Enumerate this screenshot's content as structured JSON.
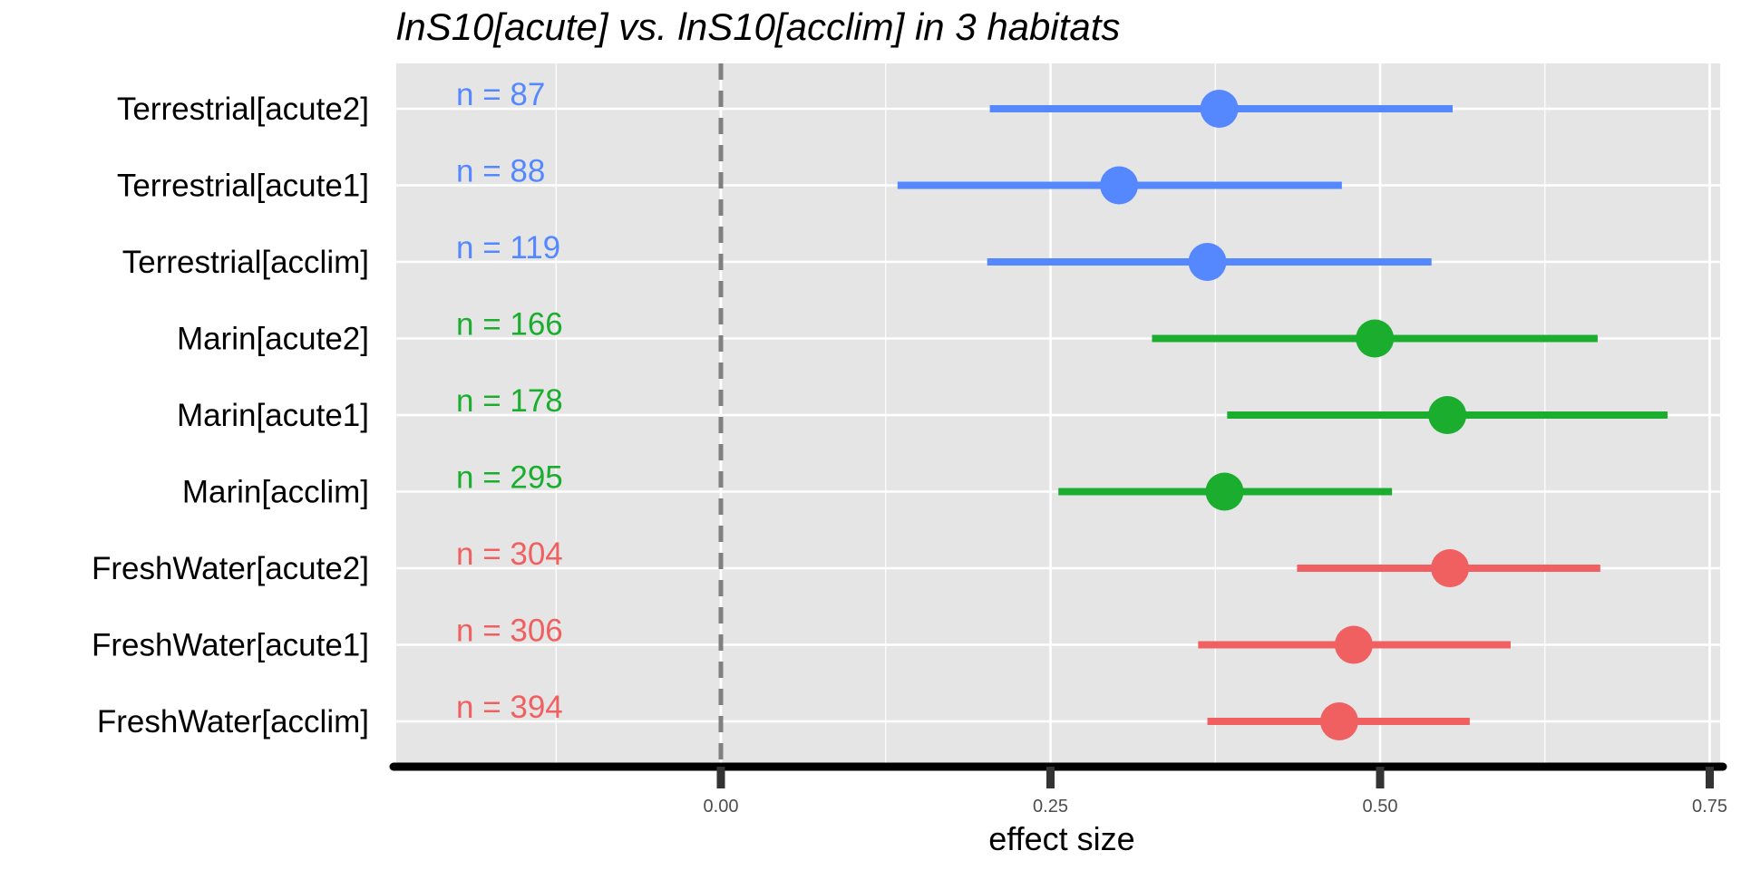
{
  "chart_data": {
    "type": "forest",
    "title": "lnS10[acute] vs. lnS10[acclim] in 3 habitats",
    "xlabel": "effect size",
    "ylabel": "",
    "xlim": [
      -0.25,
      0.76
    ],
    "xticks": [
      0.0,
      0.25,
      0.5,
      0.75
    ],
    "xtick_labels": [
      "0.00",
      "0.25",
      "0.50",
      "0.75"
    ],
    "reference_line": 0.0,
    "grid": true,
    "colors": {
      "Terrestrial": "#5588ff",
      "Marin": "#1aad2e",
      "FreshWater": "#f06060"
    },
    "rows": [
      {
        "label": "Terrestrial[acute2]",
        "group": "Terrestrial",
        "estimate": 0.378,
        "lower": 0.204,
        "upper": 0.555,
        "n_label": "n = 87"
      },
      {
        "label": "Terrestrial[acute1]",
        "group": "Terrestrial",
        "estimate": 0.302,
        "lower": 0.134,
        "upper": 0.471,
        "n_label": "n = 88"
      },
      {
        "label": "Terrestrial[acclim]",
        "group": "Terrestrial",
        "estimate": 0.369,
        "lower": 0.202,
        "upper": 0.539,
        "n_label": "n = 119"
      },
      {
        "label": "Marin[acute2]",
        "group": "Marin",
        "estimate": 0.496,
        "lower": 0.327,
        "upper": 0.665,
        "n_label": "n = 166"
      },
      {
        "label": "Marin[acute1]",
        "group": "Marin",
        "estimate": 0.551,
        "lower": 0.384,
        "upper": 0.718,
        "n_label": "n = 178"
      },
      {
        "label": "Marin[acclim]",
        "group": "Marin",
        "estimate": 0.382,
        "lower": 0.256,
        "upper": 0.509,
        "n_label": "n = 295"
      },
      {
        "label": "FreshWater[acute2]",
        "group": "FreshWater",
        "estimate": 0.553,
        "lower": 0.437,
        "upper": 0.667,
        "n_label": "n = 304"
      },
      {
        "label": "FreshWater[acute1]",
        "group": "FreshWater",
        "estimate": 0.48,
        "lower": 0.362,
        "upper": 0.599,
        "n_label": "n = 306"
      },
      {
        "label": "FreshWater[acclim]",
        "group": "FreshWater",
        "estimate": 0.469,
        "lower": 0.369,
        "upper": 0.568,
        "n_label": "n = 394"
      }
    ]
  }
}
